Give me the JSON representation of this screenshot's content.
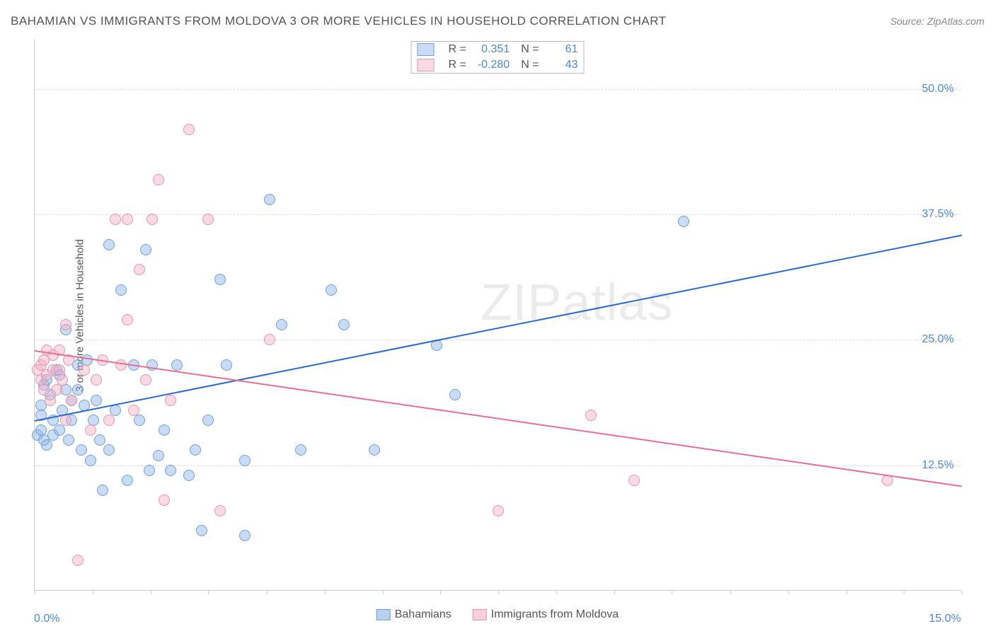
{
  "title": "BAHAMIAN VS IMMIGRANTS FROM MOLDOVA 3 OR MORE VEHICLES IN HOUSEHOLD CORRELATION CHART",
  "source_label": "Source: ",
  "source_name": "ZipAtlas.com",
  "y_axis_title": "3 or more Vehicles in Household",
  "watermark_1": "ZIP",
  "watermark_2": "atlas",
  "chart": {
    "type": "scatter",
    "background_color": "#ffffff",
    "grid_color": "#dddddd",
    "axis_color": "#cccccc",
    "tick_label_color": "#4a86e8",
    "xlim": [
      0,
      15
    ],
    "ylim": [
      0,
      55
    ],
    "x_tick_min_label": "0.0%",
    "x_tick_max_label": "15.0%",
    "x_minor_ticks": [
      0,
      0.94,
      1.88,
      2.81,
      3.75,
      4.69,
      5.63,
      6.56,
      7.5,
      8.44,
      9.38,
      10.31,
      11.25,
      12.19,
      13.13,
      14.06,
      15
    ],
    "y_gridlines": [
      {
        "value": 12.5,
        "label": "12.5%"
      },
      {
        "value": 25.0,
        "label": "25.0%"
      },
      {
        "value": 37.5,
        "label": "37.5%"
      },
      {
        "value": 50.0,
        "label": "50.0%"
      }
    ],
    "point_radius": 8,
    "point_border_width": 1.5,
    "trend_line_width": 2
  },
  "series": [
    {
      "name": "Bahamians",
      "fill_color": "rgba(137,178,231,0.45)",
      "border_color": "#6fa0db",
      "trend_color": "#2a6ad4",
      "r_label": "R =",
      "r_value": "0.351",
      "n_label": "N =",
      "n_value": "61",
      "trend": {
        "x1": 0,
        "y1": 17.0,
        "x2": 15,
        "y2": 35.5
      },
      "points": [
        [
          0.05,
          15.5
        ],
        [
          0.1,
          16
        ],
        [
          0.1,
          17.5
        ],
        [
          0.1,
          18.5
        ],
        [
          0.15,
          20.5
        ],
        [
          0.15,
          15
        ],
        [
          0.2,
          14.5
        ],
        [
          0.2,
          21
        ],
        [
          0.25,
          19.5
        ],
        [
          0.3,
          17
        ],
        [
          0.3,
          15.5
        ],
        [
          0.35,
          22
        ],
        [
          0.4,
          21.5
        ],
        [
          0.4,
          16
        ],
        [
          0.45,
          18
        ],
        [
          0.5,
          20
        ],
        [
          0.5,
          26
        ],
        [
          0.55,
          15
        ],
        [
          0.6,
          17
        ],
        [
          0.6,
          19
        ],
        [
          0.7,
          20
        ],
        [
          0.7,
          22.5
        ],
        [
          0.75,
          14
        ],
        [
          0.8,
          18.5
        ],
        [
          0.85,
          23
        ],
        [
          0.9,
          13
        ],
        [
          0.95,
          17
        ],
        [
          1.0,
          19
        ],
        [
          1.05,
          15
        ],
        [
          1.1,
          10
        ],
        [
          1.2,
          34.5
        ],
        [
          1.2,
          14
        ],
        [
          1.3,
          18
        ],
        [
          1.4,
          30
        ],
        [
          1.5,
          11
        ],
        [
          1.6,
          22.5
        ],
        [
          1.7,
          17
        ],
        [
          1.8,
          34
        ],
        [
          1.85,
          12
        ],
        [
          1.9,
          22.5
        ],
        [
          2.0,
          13.5
        ],
        [
          2.1,
          16
        ],
        [
          2.2,
          12
        ],
        [
          2.3,
          22.5
        ],
        [
          2.5,
          11.5
        ],
        [
          2.6,
          14
        ],
        [
          2.7,
          6
        ],
        [
          2.8,
          17
        ],
        [
          3.0,
          31
        ],
        [
          3.1,
          22.5
        ],
        [
          3.4,
          13
        ],
        [
          3.4,
          5.5
        ],
        [
          3.8,
          39
        ],
        [
          4.0,
          26.5
        ],
        [
          4.3,
          14
        ],
        [
          4.8,
          30
        ],
        [
          5.0,
          26.5
        ],
        [
          5.5,
          14
        ],
        [
          6.5,
          24.5
        ],
        [
          6.8,
          19.5
        ],
        [
          10.5,
          36.8
        ]
      ]
    },
    {
      "name": "Immigrants from Moldova",
      "fill_color": "rgba(244,176,196,0.45)",
      "border_color": "#e893ac",
      "trend_color": "#e76f93",
      "r_label": "R =",
      "r_value": "-0.280",
      "n_label": "N =",
      "n_value": "43",
      "trend": {
        "x1": 0,
        "y1": 24.0,
        "x2": 15,
        "y2": 10.5
      },
      "points": [
        [
          0.05,
          22
        ],
        [
          0.1,
          21
        ],
        [
          0.1,
          22.5
        ],
        [
          0.15,
          23
        ],
        [
          0.15,
          20
        ],
        [
          0.2,
          24
        ],
        [
          0.2,
          21.5
        ],
        [
          0.25,
          19
        ],
        [
          0.3,
          23.5
        ],
        [
          0.3,
          22
        ],
        [
          0.35,
          20
        ],
        [
          0.4,
          24
        ],
        [
          0.4,
          22
        ],
        [
          0.45,
          21
        ],
        [
          0.5,
          26.5
        ],
        [
          0.5,
          17
        ],
        [
          0.55,
          23
        ],
        [
          0.6,
          19
        ],
        [
          0.7,
          3
        ],
        [
          0.8,
          22
        ],
        [
          0.9,
          16
        ],
        [
          1.0,
          21
        ],
        [
          1.1,
          23
        ],
        [
          1.2,
          17
        ],
        [
          1.3,
          37
        ],
        [
          1.4,
          22.5
        ],
        [
          1.5,
          27
        ],
        [
          1.5,
          37
        ],
        [
          1.6,
          18
        ],
        [
          1.7,
          32
        ],
        [
          1.8,
          21
        ],
        [
          1.9,
          37
        ],
        [
          2.0,
          41
        ],
        [
          2.1,
          9
        ],
        [
          2.2,
          19
        ],
        [
          2.5,
          46
        ],
        [
          2.8,
          37
        ],
        [
          3.0,
          8
        ],
        [
          3.8,
          25
        ],
        [
          7.5,
          8
        ],
        [
          9.0,
          17.5
        ],
        [
          9.7,
          11
        ],
        [
          13.8,
          11
        ]
      ]
    }
  ],
  "legend_bottom": [
    {
      "label": "Bahamians",
      "fill": "rgba(137,178,231,0.6)",
      "border": "#6fa0db"
    },
    {
      "label": "Immigrants from Moldova",
      "fill": "rgba(244,176,196,0.6)",
      "border": "#e893ac"
    }
  ]
}
